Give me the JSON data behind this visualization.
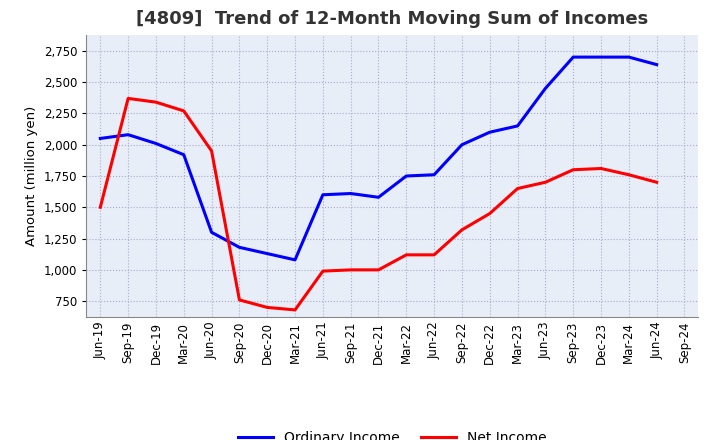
{
  "title": "[4809]  Trend of 12-Month Moving Sum of Incomes",
  "ylabel": "Amount (million yen)",
  "x_labels": [
    "Jun-19",
    "Sep-19",
    "Dec-19",
    "Mar-20",
    "Jun-20",
    "Sep-20",
    "Dec-20",
    "Mar-21",
    "Jun-21",
    "Sep-21",
    "Dec-21",
    "Mar-22",
    "Jun-22",
    "Sep-22",
    "Dec-22",
    "Mar-23",
    "Jun-23",
    "Sep-23",
    "Dec-23",
    "Mar-24",
    "Jun-24",
    "Sep-24"
  ],
  "ordinary_income": [
    2050,
    2080,
    2010,
    1920,
    1300,
    1180,
    1130,
    1080,
    1600,
    1610,
    1580,
    1750,
    1760,
    2000,
    2100,
    2150,
    2450,
    2700,
    2700,
    2700,
    2640,
    null
  ],
  "net_income": [
    1500,
    2370,
    2340,
    2270,
    1950,
    760,
    700,
    680,
    990,
    1000,
    1000,
    1120,
    1120,
    1320,
    1450,
    1650,
    1700,
    1800,
    1810,
    1760,
    1700,
    null
  ],
  "ordinary_color": "#0000ff",
  "net_color": "#ff0000",
  "background_color": "#ffffff",
  "plot_bg_color": "#e8eef8",
  "grid_color": "#aaaacc",
  "ylim": [
    625,
    2875
  ],
  "yticks": [
    750,
    1000,
    1250,
    1500,
    1750,
    2000,
    2250,
    2500,
    2750
  ],
  "line_width": 2.2,
  "title_fontsize": 13,
  "legend_fontsize": 10,
  "tick_fontsize": 8.5
}
